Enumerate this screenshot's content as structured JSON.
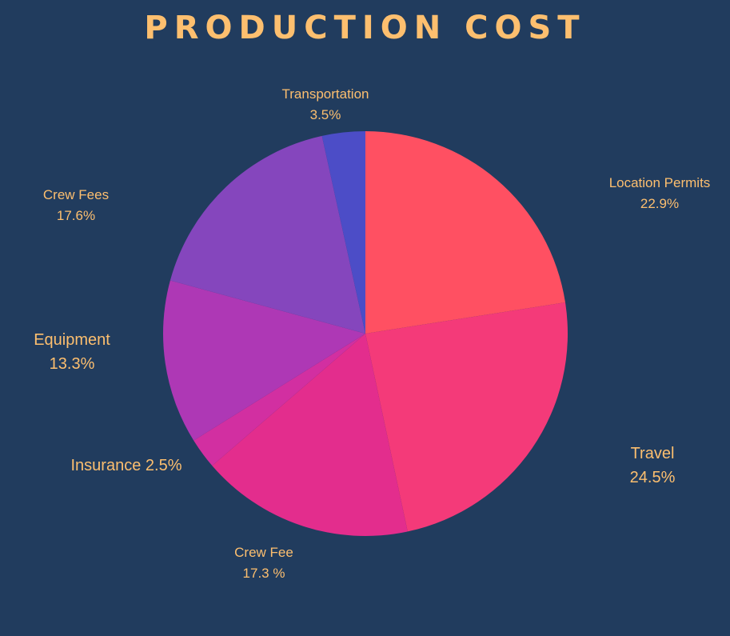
{
  "chart_data": {
    "type": "pie",
    "title": "PRODUCTION COST",
    "slices": [
      {
        "label": "Location Permits",
        "value_text": "22.9%",
        "value": 22.9,
        "color": "#ff5062"
      },
      {
        "label": "Travel",
        "value_text": "24.5%",
        "value": 24.5,
        "color": "#f43a79"
      },
      {
        "label": "Crew Fee",
        "value_text": "17.3 %",
        "value": 17.3,
        "color": "#e32d8d"
      },
      {
        "label": "Insurance",
        "value_text": "2.5%",
        "value": 2.5,
        "color": "#d22fa1"
      },
      {
        "label": "Equipment",
        "value_text": "13.3%",
        "value": 13.3,
        "color": "#ae38b5"
      },
      {
        "label": "Crew Fees",
        "value_text": "17.6%",
        "value": 17.6,
        "color": "#8546bd"
      },
      {
        "label": "Transportation",
        "value_text": "3.5%",
        "value": 3.5,
        "color": "#4c4dc7"
      }
    ],
    "start_angle": "12 o'clock",
    "direction": "clockwise",
    "legend": "none",
    "colors": {
      "background": "#213c5e",
      "text": "#fdbf6f"
    }
  }
}
